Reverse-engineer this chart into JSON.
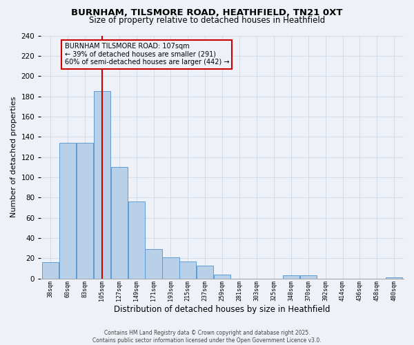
{
  "title_line1": "BURNHAM, TILSMORE ROAD, HEATHFIELD, TN21 0XT",
  "title_line2": "Size of property relative to detached houses in Heathfield",
  "xlabel": "Distribution of detached houses by size in Heathfield",
  "ylabel": "Number of detached properties",
  "bar_labels": [
    "38sqm",
    "60sqm",
    "83sqm",
    "105sqm",
    "127sqm",
    "149sqm",
    "171sqm",
    "193sqm",
    "215sqm",
    "237sqm",
    "259sqm",
    "281sqm",
    "303sqm",
    "325sqm",
    "348sqm",
    "370sqm",
    "392sqm",
    "414sqm",
    "436sqm",
    "458sqm",
    "480sqm"
  ],
  "bar_values": [
    16,
    134,
    134,
    185,
    110,
    76,
    29,
    21,
    17,
    13,
    4,
    0,
    0,
    0,
    3,
    3,
    0,
    0,
    0,
    0,
    1
  ],
  "bar_color": "#b8d0e8",
  "bar_edge_color": "#5b9bd5",
  "grid_color": "#d4dce8",
  "background_color": "#eef2f8",
  "annotation_box_text_line1": "BURNHAM TILSMORE ROAD: 107sqm",
  "annotation_box_text_line2": "← 39% of detached houses are smaller (291)",
  "annotation_box_text_line3": "60% of semi-detached houses are larger (442) →",
  "red_line_bin_index": 3,
  "ylim": [
    0,
    240
  ],
  "yticks": [
    0,
    20,
    40,
    60,
    80,
    100,
    120,
    140,
    160,
    180,
    200,
    220,
    240
  ],
  "footer_line1": "Contains HM Land Registry data © Crown copyright and database right 2025.",
  "footer_line2": "Contains public sector information licensed under the Open Government Licence v3.0."
}
